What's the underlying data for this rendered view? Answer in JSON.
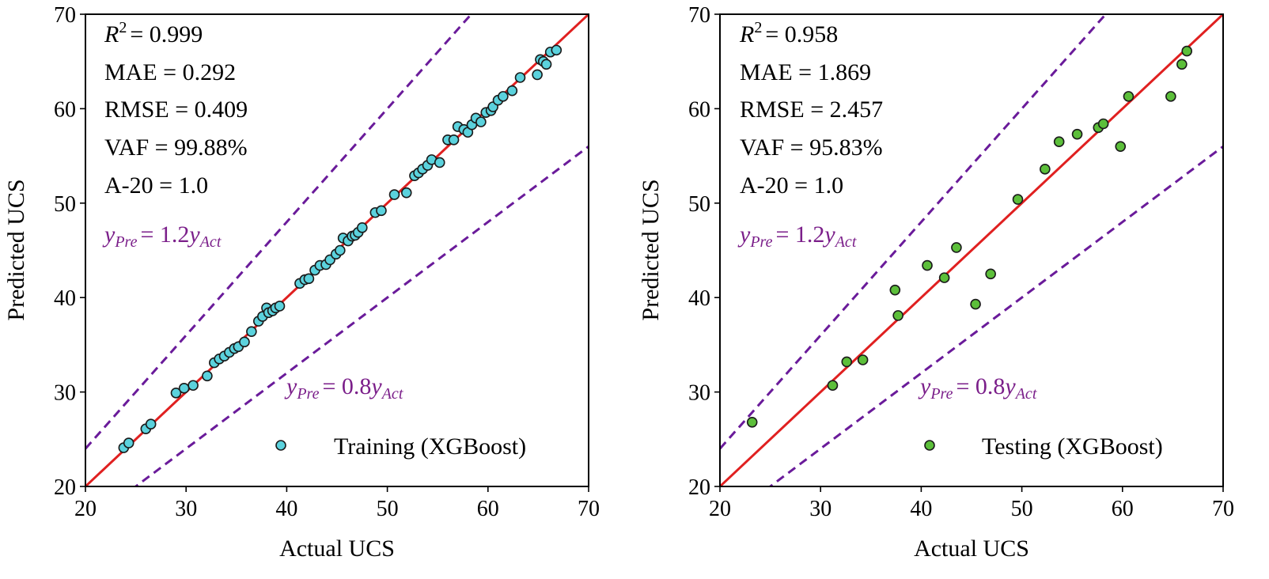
{
  "colors": {
    "fit_line": "#e02020",
    "bound_line": "#6a1b9a",
    "bound_text": "#7b1f8a",
    "train_marker": "#5bd2dd",
    "test_marker": "#5cbf3a",
    "marker_edge": "#1a1a1a"
  },
  "chart_data": [
    {
      "type": "scatter",
      "xlabel": "Actual UCS",
      "ylabel": "Predicted UCS",
      "xlim": [
        20,
        70
      ],
      "ylim": [
        20,
        70
      ],
      "xticks": [
        "20",
        "30",
        "40",
        "50",
        "60",
        "70"
      ],
      "yticks": [
        "20",
        "30",
        "40",
        "50",
        "60",
        "70"
      ],
      "metrics": {
        "r2_symbol": "R",
        "r2_exp": "2",
        "r2_value": "= 0.999",
        "mae": "MAE = 0.292",
        "rmse": "RMSE = 0.409",
        "vaf": "VAF = 99.88%",
        "a20": "A-20 = 1.0"
      },
      "lines": {
        "perfect_fit": "y = x",
        "upper": {
          "y": "y",
          "y_sub": "Pre",
          "eq": "= 1.2",
          "x": "y",
          "x_sub": "Act",
          "slope": 1.2
        },
        "lower": {
          "y": "y",
          "y_sub": "Pre",
          "eq": "= 0.8",
          "x": "y",
          "x_sub": "Act",
          "slope": 0.8
        }
      },
      "legend": "Training (XGBoost)",
      "legend_position": "lower-right",
      "series": [
        {
          "name": "Training (XGBoost)",
          "points": [
            [
              23.8,
              24.1
            ],
            [
              24.3,
              24.6
            ],
            [
              26.0,
              26.1
            ],
            [
              26.5,
              26.6
            ],
            [
              29.0,
              29.9
            ],
            [
              29.8,
              30.4
            ],
            [
              30.7,
              30.7
            ],
            [
              32.1,
              31.7
            ],
            [
              32.8,
              33.1
            ],
            [
              33.3,
              33.5
            ],
            [
              33.8,
              33.8
            ],
            [
              34.3,
              34.2
            ],
            [
              34.8,
              34.6
            ],
            [
              35.2,
              34.8
            ],
            [
              35.8,
              35.3
            ],
            [
              36.5,
              36.4
            ],
            [
              37.2,
              37.5
            ],
            [
              37.6,
              38.0
            ],
            [
              38.0,
              38.9
            ],
            [
              38.2,
              38.4
            ],
            [
              38.6,
              38.6
            ],
            [
              38.9,
              38.9
            ],
            [
              39.3,
              39.1
            ],
            [
              41.3,
              41.5
            ],
            [
              41.8,
              41.9
            ],
            [
              42.2,
              42.0
            ],
            [
              42.8,
              42.9
            ],
            [
              43.3,
              43.4
            ],
            [
              43.9,
              43.5
            ],
            [
              44.3,
              44.0
            ],
            [
              44.9,
              44.6
            ],
            [
              45.3,
              45.0
            ],
            [
              45.6,
              46.3
            ],
            [
              46.1,
              46.0
            ],
            [
              46.5,
              46.5
            ],
            [
              46.8,
              46.6
            ],
            [
              47.1,
              46.9
            ],
            [
              47.5,
              47.4
            ],
            [
              48.8,
              49.0
            ],
            [
              49.4,
              49.2
            ],
            [
              50.7,
              50.9
            ],
            [
              51.9,
              51.1
            ],
            [
              52.7,
              52.9
            ],
            [
              53.1,
              53.2
            ],
            [
              53.5,
              53.6
            ],
            [
              54.0,
              54.0
            ],
            [
              54.4,
              54.6
            ],
            [
              55.2,
              54.3
            ],
            [
              56.0,
              56.7
            ],
            [
              56.6,
              56.7
            ],
            [
              57.0,
              58.1
            ],
            [
              57.6,
              57.8
            ],
            [
              58.0,
              57.5
            ],
            [
              58.4,
              58.3
            ],
            [
              58.8,
              59.0
            ],
            [
              59.3,
              58.6
            ],
            [
              59.8,
              59.6
            ],
            [
              60.3,
              59.8
            ],
            [
              60.5,
              60.2
            ],
            [
              61.0,
              60.9
            ],
            [
              61.5,
              61.3
            ],
            [
              62.4,
              61.9
            ],
            [
              63.2,
              63.3
            ],
            [
              64.9,
              63.6
            ],
            [
              65.2,
              65.2
            ],
            [
              65.5,
              65.0
            ],
            [
              65.8,
              64.7
            ],
            [
              66.2,
              66.0
            ],
            [
              66.8,
              66.2
            ]
          ]
        }
      ]
    },
    {
      "type": "scatter",
      "xlabel": "Actual UCS",
      "ylabel": "Predicted UCS",
      "xlim": [
        20,
        70
      ],
      "ylim": [
        20,
        70
      ],
      "xticks": [
        "20",
        "30",
        "40",
        "50",
        "60",
        "70"
      ],
      "yticks": [
        "20",
        "30",
        "40",
        "50",
        "60",
        "70"
      ],
      "metrics": {
        "r2_symbol": "R",
        "r2_exp": "2",
        "r2_value": "= 0.958",
        "mae": "MAE = 1.869",
        "rmse": "RMSE = 2.457",
        "vaf": "VAF = 95.83%",
        "a20": "A-20 = 1.0"
      },
      "lines": {
        "perfect_fit": "y = x",
        "upper": {
          "y": "y",
          "y_sub": "Pre",
          "eq": "= 1.2",
          "x": "y",
          "x_sub": "Act",
          "slope": 1.2
        },
        "lower": {
          "y": "y",
          "y_sub": "Pre",
          "eq": "= 0.8",
          "x": "y",
          "x_sub": "Act",
          "slope": 0.8
        }
      },
      "legend": "Testing (XGBoost)",
      "legend_position": "lower-right",
      "series": [
        {
          "name": "Testing (XGBoost)",
          "points": [
            [
              23.2,
              26.8
            ],
            [
              31.2,
              30.7
            ],
            [
              32.6,
              33.2
            ],
            [
              34.2,
              33.4
            ],
            [
              37.4,
              40.8
            ],
            [
              37.7,
              38.1
            ],
            [
              40.6,
              43.4
            ],
            [
              42.3,
              42.1
            ],
            [
              43.5,
              45.3
            ],
            [
              45.4,
              39.3
            ],
            [
              46.9,
              42.5
            ],
            [
              49.6,
              50.4
            ],
            [
              52.3,
              53.6
            ],
            [
              53.7,
              56.5
            ],
            [
              55.5,
              57.3
            ],
            [
              57.6,
              58.0
            ],
            [
              58.1,
              58.4
            ],
            [
              59.8,
              56.0
            ],
            [
              60.6,
              61.3
            ],
            [
              64.8,
              61.3
            ],
            [
              65.9,
              64.7
            ],
            [
              66.4,
              66.1
            ]
          ]
        }
      ]
    }
  ]
}
